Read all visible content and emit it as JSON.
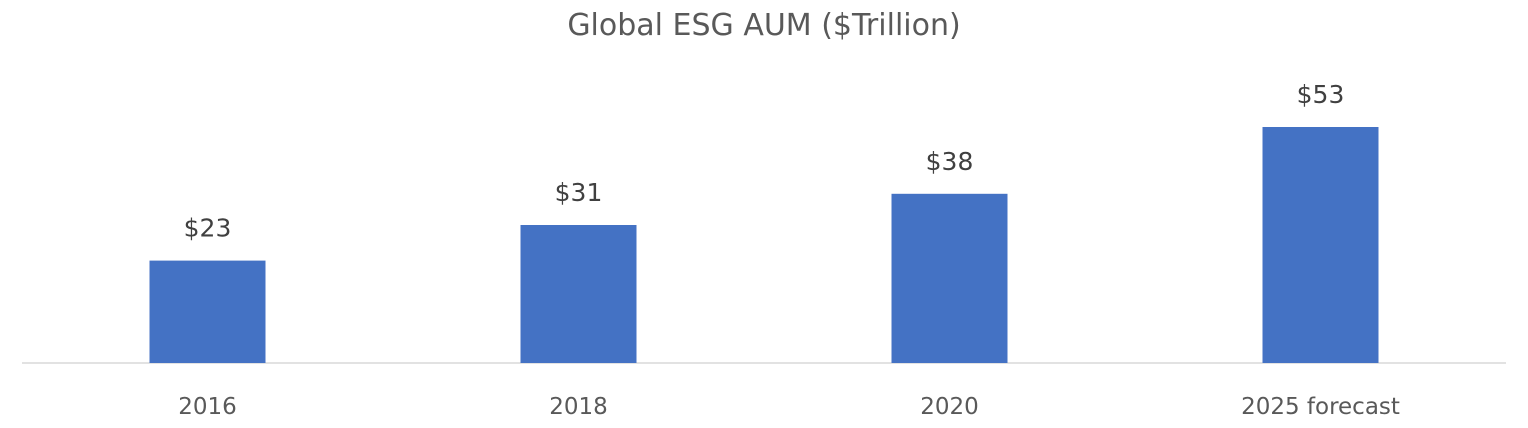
{
  "chart_data": {
    "type": "bar",
    "title": "Global ESG AUM ($Trillion)",
    "categories": [
      "2016",
      "2018",
      "2020",
      "2025 forecast"
    ],
    "values": [
      23,
      31,
      38,
      53
    ],
    "data_labels": [
      "$23",
      "$31",
      "$38",
      "$53"
    ],
    "xlabel": "",
    "ylabel": "",
    "ylim": [
      0,
      60
    ],
    "grid": false,
    "legend": "none",
    "bar_color": "#4472C4"
  }
}
